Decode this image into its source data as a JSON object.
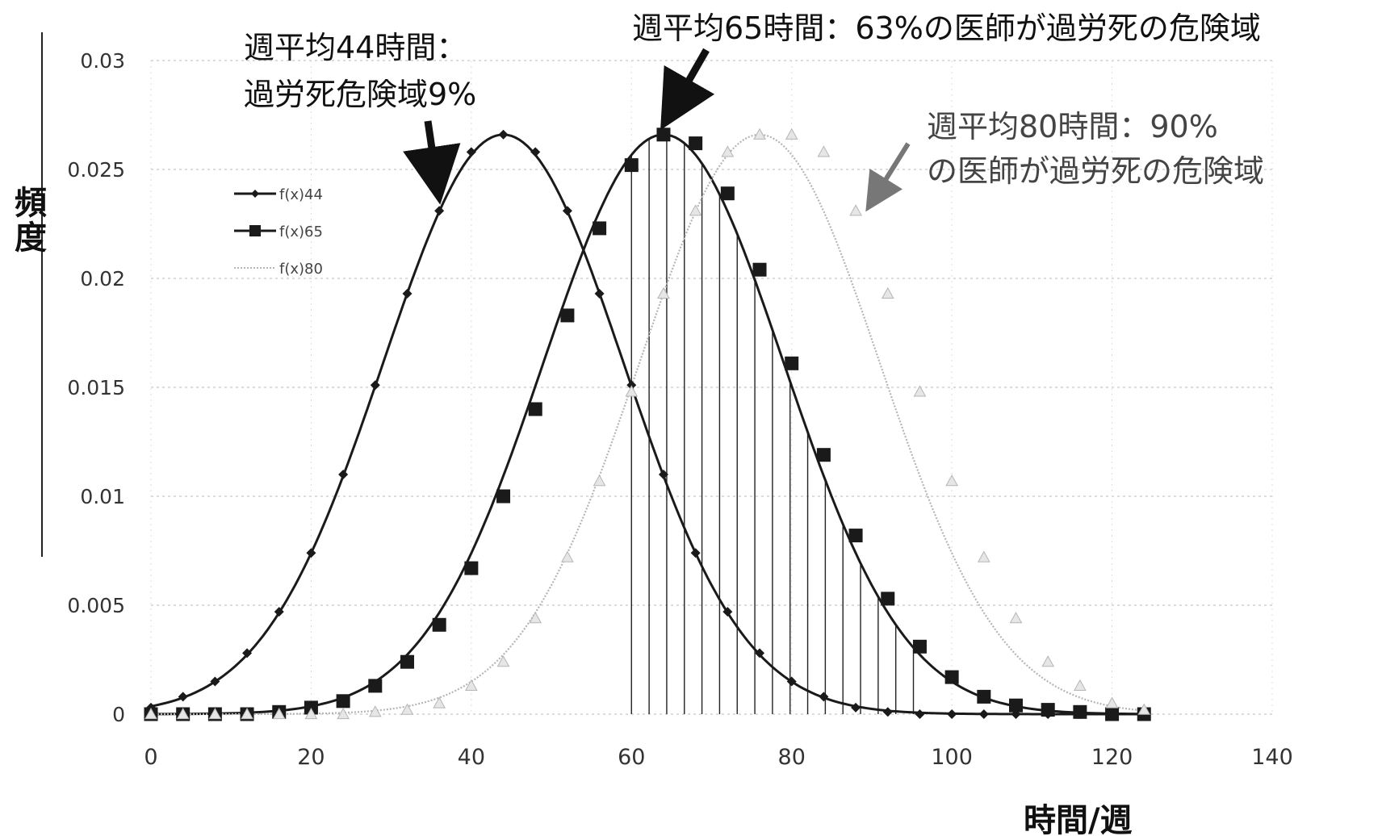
{
  "chart_data": {
    "type": "line",
    "xlabel": "時間/週",
    "ylabel": "頻度",
    "xlim": [
      0,
      140
    ],
    "ylim": [
      0,
      0.03
    ],
    "xticks": [
      "0",
      "20",
      "40",
      "60",
      "80",
      "100",
      "120",
      "140"
    ],
    "yticks": [
      "0",
      "0.005",
      "0.01",
      "0.015",
      "0.02",
      "0.025",
      "0.03"
    ],
    "grid": "horizontal dotted",
    "legend_placement": "left",
    "series": [
      {
        "name": "f(x)44",
        "marker": "diamond",
        "color": "#1a1a1a",
        "x": [
          0,
          4,
          8,
          12,
          16,
          20,
          24,
          28,
          32,
          36,
          40,
          44,
          48,
          52,
          56,
          60,
          64,
          68,
          72,
          76,
          80,
          84,
          88,
          92,
          96,
          100,
          104,
          108,
          112,
          116,
          120,
          124
        ],
        "y": [
          0.0003,
          0.0008,
          0.0015,
          0.0028,
          0.0047,
          0.0074,
          0.011,
          0.0151,
          0.0193,
          0.0231,
          0.0258,
          0.0266,
          0.0258,
          0.0231,
          0.0193,
          0.0151,
          0.011,
          0.0074,
          0.0047,
          0.0028,
          0.0015,
          0.0008,
          0.0003,
          0.0001,
          0.0,
          0.0,
          0.0,
          0.0,
          0.0,
          0.0,
          0.0,
          0.0
        ]
      },
      {
        "name": "f(x)65",
        "marker": "square",
        "color": "#1a1a1a",
        "x": [
          0,
          4,
          8,
          12,
          16,
          20,
          24,
          28,
          32,
          36,
          40,
          44,
          48,
          52,
          56,
          60,
          64,
          68,
          72,
          76,
          80,
          84,
          88,
          92,
          96,
          100,
          104,
          108,
          112,
          116,
          120,
          124
        ],
        "y": [
          0.0,
          0.0,
          0.0,
          0.0,
          0.0001,
          0.0003,
          0.0006,
          0.0013,
          0.0024,
          0.0041,
          0.0067,
          0.01,
          0.014,
          0.0183,
          0.0223,
          0.0252,
          0.0266,
          0.0262,
          0.0239,
          0.0204,
          0.0161,
          0.0119,
          0.0082,
          0.0053,
          0.0031,
          0.0017,
          0.0008,
          0.0004,
          0.0002,
          0.0001,
          0.0,
          0.0
        ]
      },
      {
        "name": "f(x)80",
        "marker": "triangle",
        "color": "#b5b5b5",
        "x": [
          0,
          4,
          8,
          12,
          16,
          20,
          24,
          28,
          32,
          36,
          40,
          44,
          48,
          52,
          56,
          60,
          64,
          68,
          72,
          76,
          80,
          84,
          88,
          92,
          96,
          100,
          104,
          108,
          112,
          116,
          120,
          124
        ],
        "y": [
          0.0,
          0.0,
          0.0,
          0.0,
          0.0,
          0.0,
          0.0,
          0.0001,
          0.0002,
          0.0005,
          0.0013,
          0.0024,
          0.0044,
          0.0072,
          0.0107,
          0.0148,
          0.0193,
          0.0231,
          0.0258,
          0.0266,
          0.0266,
          0.0258,
          0.0231,
          0.0193,
          0.0148,
          0.0107,
          0.0072,
          0.0044,
          0.0024,
          0.0013,
          0.0005,
          0.0002
        ]
      }
    ],
    "shaded_region": {
      "series": "f(x)65",
      "x_from": 60,
      "x_to": 96,
      "style": "vertical hatching"
    },
    "annotations": [
      {
        "lines": [
          "週平均44時間：",
          "過労死危険域9%"
        ]
      },
      {
        "lines": [
          "週平均65時間：63%の医師が過労死の危険域"
        ]
      },
      {
        "lines": [
          "週平均80時間：90%",
          "の医師が過労死の危険域"
        ]
      }
    ]
  }
}
